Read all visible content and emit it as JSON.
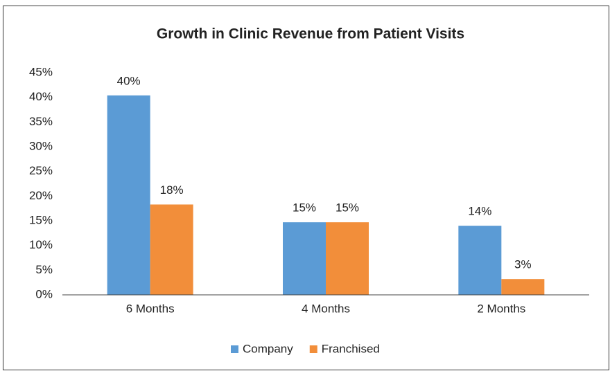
{
  "chart_data": {
    "type": "bar",
    "title": "Growth in Clinic Revenue from Patient Visits",
    "categories": [
      "6 Months",
      "4 Months",
      "2 Months"
    ],
    "series": [
      {
        "name": "Company",
        "color": "#5b9bd5",
        "values": [
          40.4,
          14.7,
          14.0
        ],
        "value_labels": [
          "40%",
          "15%",
          "14%"
        ]
      },
      {
        "name": "Franchised",
        "color": "#f28e3a",
        "values": [
          18.3,
          14.7,
          3.2
        ],
        "value_labels": [
          "18%",
          "15%",
          "3%"
        ]
      }
    ],
    "ylim": [
      0,
      45
    ],
    "yticks": [
      {
        "value": 0,
        "label": "0%"
      },
      {
        "value": 5,
        "label": "5%"
      },
      {
        "value": 10,
        "label": "10%"
      },
      {
        "value": 15,
        "label": "15%"
      },
      {
        "value": 20,
        "label": "20%"
      },
      {
        "value": 25,
        "label": "25%"
      },
      {
        "value": 30,
        "label": "30%"
      },
      {
        "value": 35,
        "label": "35%"
      },
      {
        "value": 40,
        "label": "40%"
      },
      {
        "value": 45,
        "label": "45%"
      }
    ],
    "grid": false,
    "legend": "bottom"
  }
}
